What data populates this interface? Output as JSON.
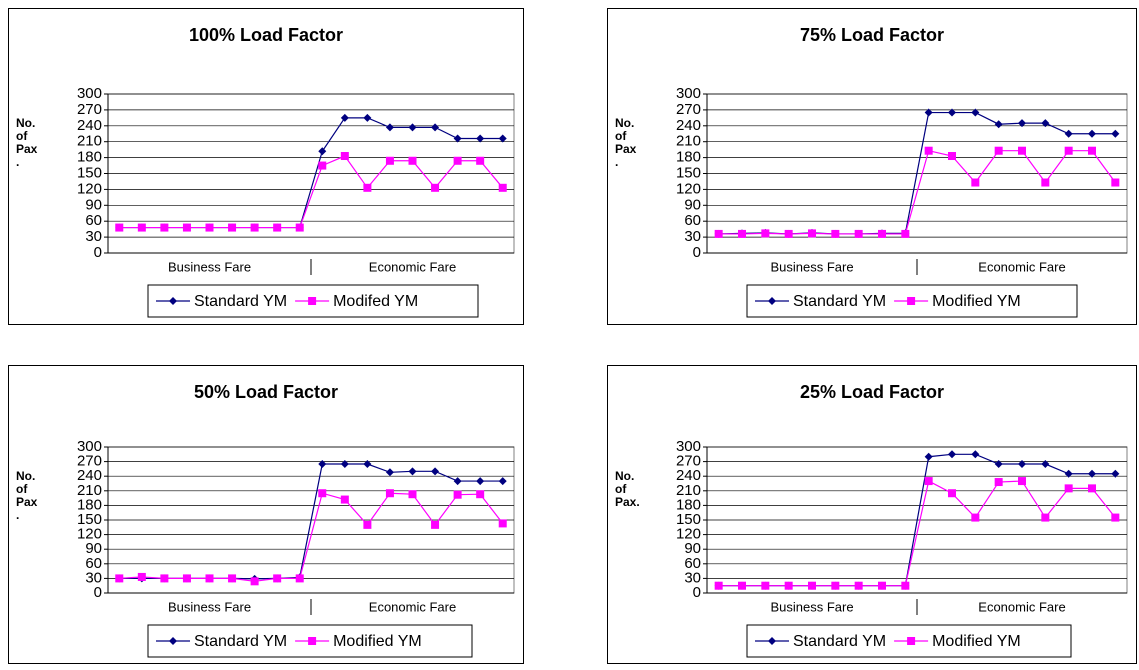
{
  "chart_data": [
    {
      "type": "line",
      "title": "100% Load Factor",
      "ylabel": [
        "No.",
        "of",
        "Pax",
        "."
      ],
      "categories": [
        null,
        null,
        null,
        null,
        null,
        null,
        null,
        null,
        null,
        null,
        null,
        null,
        null,
        null,
        null,
        null,
        null,
        null
      ],
      "groups": [
        "Business Fare",
        "Economic Fare"
      ],
      "ylim": [
        0,
        300
      ],
      "yticks": [
        0,
        30,
        60,
        90,
        120,
        150,
        180,
        210,
        240,
        270,
        300
      ],
      "grid": true,
      "series": [
        {
          "name": "Standard YM",
          "color": "#000080",
          "marker": "diamond",
          "values": [
            48,
            48,
            48,
            48,
            48,
            48,
            48,
            48,
            48,
            192,
            255,
            255,
            237,
            237,
            237,
            216,
            216,
            216
          ]
        },
        {
          "name": "Modifed YM",
          "color": "#ff00ff",
          "marker": "square",
          "values": [
            48,
            48,
            48,
            48,
            48,
            48,
            48,
            48,
            48,
            165,
            183,
            123,
            174,
            174,
            123,
            174,
            174,
            123
          ]
        }
      ]
    },
    {
      "type": "line",
      "title": "75% Load Factor",
      "ylabel": [
        "No.",
        "of",
        "Pax",
        "."
      ],
      "categories": [
        null,
        null,
        null,
        null,
        null,
        null,
        null,
        null,
        null,
        null,
        null,
        null,
        null,
        null,
        null,
        null,
        null,
        null
      ],
      "groups": [
        "Business Fare",
        "Economic Fare"
      ],
      "ylim": [
        0,
        300
      ],
      "yticks": [
        0,
        30,
        60,
        90,
        120,
        150,
        180,
        210,
        240,
        270,
        300
      ],
      "grid": true,
      "series": [
        {
          "name": "Standard YM",
          "color": "#000080",
          "marker": "diamond",
          "values": [
            36,
            37,
            38,
            36,
            38,
            36,
            36,
            37,
            37,
            265,
            265,
            265,
            243,
            245,
            245,
            225,
            225,
            225
          ]
        },
        {
          "name": "Modified YM",
          "color": "#ff00ff",
          "marker": "square",
          "values": [
            36,
            36,
            37,
            36,
            37,
            36,
            36,
            36,
            36,
            193,
            183,
            133,
            193,
            193,
            133,
            193,
            193,
            133
          ]
        }
      ]
    },
    {
      "type": "line",
      "title": "50% Load Factor",
      "ylabel": [
        "No.",
        "of",
        "Pax",
        "."
      ],
      "categories": [
        null,
        null,
        null,
        null,
        null,
        null,
        null,
        null,
        null,
        null,
        null,
        null,
        null,
        null,
        null,
        null,
        null,
        null
      ],
      "groups": [
        "Business Fare",
        "Economic Fare"
      ],
      "ylim": [
        0,
        300
      ],
      "yticks": [
        0,
        30,
        60,
        90,
        120,
        150,
        180,
        210,
        240,
        270,
        300
      ],
      "grid": true,
      "series": [
        {
          "name": "Standard YM",
          "color": "#000080",
          "marker": "diamond",
          "values": [
            30,
            30,
            30,
            30,
            30,
            30,
            29,
            30,
            32,
            265,
            265,
            265,
            248,
            250,
            250,
            230,
            230,
            230
          ]
        },
        {
          "name": "Modified YM",
          "color": "#ff00ff",
          "marker": "square",
          "values": [
            30,
            33,
            30,
            30,
            30,
            30,
            24,
            30,
            30,
            205,
            192,
            140,
            205,
            203,
            140,
            202,
            203,
            143
          ]
        }
      ]
    },
    {
      "type": "line",
      "title": "25% Load Factor",
      "ylabel": [
        "No.",
        "of",
        "Pax."
      ],
      "categories": [
        null,
        null,
        null,
        null,
        null,
        null,
        null,
        null,
        null,
        null,
        null,
        null,
        null,
        null,
        null,
        null,
        null,
        null
      ],
      "groups": [
        "Business Fare",
        "Economic Fare"
      ],
      "ylim": [
        0,
        300
      ],
      "yticks": [
        0,
        30,
        60,
        90,
        120,
        150,
        180,
        210,
        240,
        270,
        300
      ],
      "grid": true,
      "series": [
        {
          "name": "Standard YM",
          "color": "#000080",
          "marker": "diamond",
          "values": [
            15,
            15,
            15,
            15,
            15,
            15,
            15,
            15,
            15,
            280,
            285,
            285,
            265,
            265,
            265,
            245,
            245,
            245
          ]
        },
        {
          "name": "Modified YM",
          "color": "#ff00ff",
          "marker": "square",
          "values": [
            15,
            15,
            15,
            15,
            15,
            15,
            15,
            15,
            15,
            230,
            205,
            155,
            228,
            230,
            155,
            215,
            215,
            155
          ]
        }
      ]
    }
  ]
}
